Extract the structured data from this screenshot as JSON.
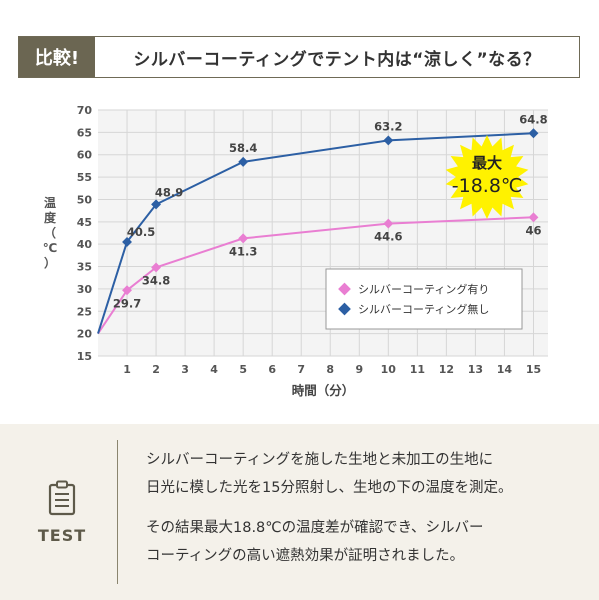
{
  "header": {
    "badge": "比較!",
    "headline": "シルバーコーティングでテント内は“涼しく”なる？"
  },
  "chart_data": {
    "type": "line",
    "xlabel": "時間（分）",
    "ylabel": "温度（℃）",
    "x": [
      0,
      1,
      2,
      5,
      10,
      15
    ],
    "x_ticks": [
      "1",
      "2",
      "3",
      "4",
      "5",
      "6",
      "7",
      "8",
      "9",
      "10",
      "11",
      "12",
      "13",
      "14",
      "15"
    ],
    "y_ticks": [
      "15",
      "20",
      "25",
      "30",
      "35",
      "40",
      "45",
      "50",
      "55",
      "60",
      "65",
      "70"
    ],
    "ylim": [
      15,
      70
    ],
    "xlim": [
      0,
      15.5
    ],
    "grid": true,
    "legend_placement": "bottom-right",
    "series": [
      {
        "name": "シルバーコーティング有り",
        "color": "#e97ed2",
        "values": [
          20,
          29.7,
          34.8,
          41.3,
          44.6,
          46
        ],
        "labels": [
          "",
          "29.7",
          "34.8",
          "41.3",
          "44.6",
          "46"
        ]
      },
      {
        "name": "シルバーコーティング無し",
        "color": "#2c5fa4",
        "values": [
          20,
          40.5,
          48.9,
          58.4,
          63.2,
          64.8
        ],
        "labels": [
          "",
          "40.5",
          "48.9",
          "58.4",
          "63.2",
          "64.8"
        ]
      }
    ],
    "annotation": {
      "line1": "最大",
      "line2": "-18.8℃",
      "color": "#fff200"
    }
  },
  "test": {
    "label": "TEST",
    "icon": "clipboard-icon",
    "paragraph1": "シルバーコーティングを施した生地と未加工の生地に\n日光に模した光を15分照射し、生地の下の温度を測定。",
    "paragraph2": "その結果最大18.8℃の温度差が確認でき、シルバー\nコーティングの高い遮熱効果が証明されました。"
  }
}
